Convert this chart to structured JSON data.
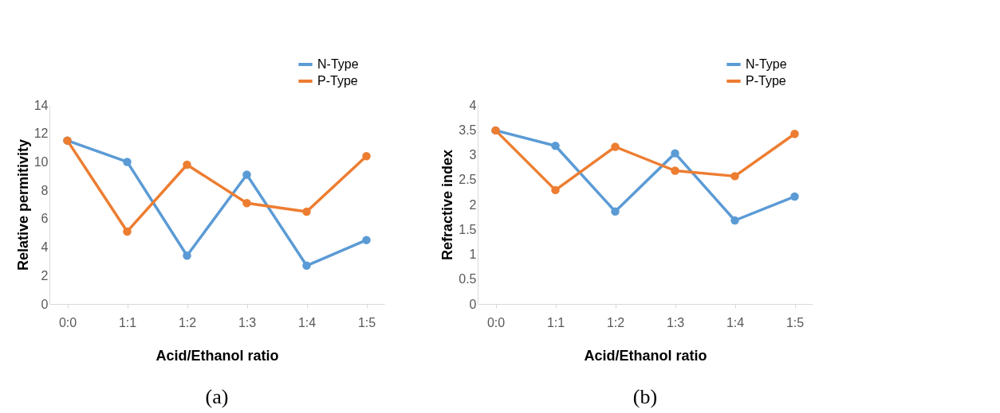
{
  "chart_data": [
    {
      "type": "line",
      "xlabel": "Acid/Ethanol ratio",
      "ylabel": "Relative permitivity",
      "categories": [
        "0:0",
        "1:1",
        "1:2",
        "1:3",
        "1:4",
        "1:5"
      ],
      "series": [
        {
          "name": "N-Type",
          "color": "#5b9bd5",
          "values": [
            11.5,
            10,
            3.4,
            9.1,
            2.7,
            4.5
          ]
        },
        {
          "name": "P-Type",
          "color": "#ed7d31",
          "values": [
            11.5,
            5.1,
            9.8,
            7.1,
            6.5,
            10.4
          ]
        }
      ],
      "ylim": [
        0,
        14
      ],
      "yticks": [
        0,
        2,
        4,
        6,
        8,
        10,
        12,
        14
      ],
      "grid": false,
      "legend": "top right",
      "marker": "circle",
      "line_style": "solid",
      "annotations": [
        "(a)"
      ]
    },
    {
      "type": "line",
      "xlabel": "Acid/Ethanol ratio",
      "ylabel": "Refractive  index",
      "categories": [
        "0:0",
        "1:1",
        "1:2",
        "1:3",
        "1:4",
        "1:5"
      ],
      "series": [
        {
          "name": "N-Type",
          "color": "#5b9bd5",
          "values": [
            3.49,
            3.18,
            1.86,
            3.03,
            1.68,
            2.16
          ]
        },
        {
          "name": "P-Type",
          "color": "#ed7d31",
          "values": [
            3.49,
            2.29,
            3.16,
            2.68,
            2.57,
            3.42
          ]
        }
      ],
      "ylim": [
        0,
        4
      ],
      "yticks": [
        0,
        0.5,
        1,
        1.5,
        2,
        2.5,
        3,
        3.5,
        4
      ],
      "grid": false,
      "legend": "top right",
      "marker": "circle",
      "line_style": "solid",
      "annotations": [
        "(b)"
      ]
    }
  ]
}
